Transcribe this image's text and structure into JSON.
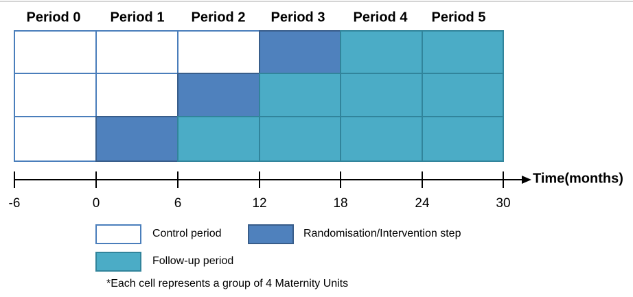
{
  "periods": [
    "Period 0",
    "Period 1",
    "Period 2",
    "Period 3",
    "Period 4",
    "Period 5"
  ],
  "timeline": {
    "label": "Time(months)",
    "ticks": [
      -6,
      0,
      6,
      12,
      18,
      24,
      30
    ]
  },
  "legend": [
    "Control period",
    "Randomisation/Intervention step",
    "Follow-up period"
  ],
  "footnote": "*Each cell represents a group of 4 Maternity Units"
}
